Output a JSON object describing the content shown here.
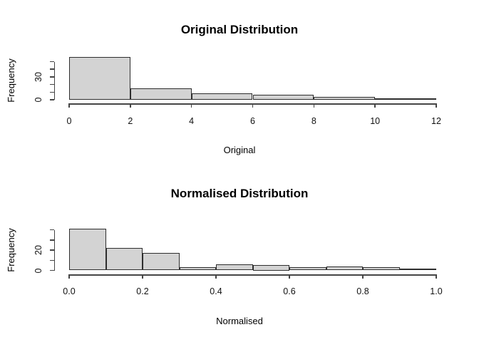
{
  "figure": {
    "background": "#ffffff",
    "text_color": "#000000"
  },
  "chart_data": [
    {
      "type": "histogram",
      "title": "Original Distribution",
      "xlabel": "Original",
      "ylabel": "Frequency",
      "bin_start": 0,
      "bin_width": 2,
      "counts": [
        56,
        15,
        8,
        7,
        4,
        2
      ],
      "xlim": [
        0,
        12
      ],
      "ylim": [
        0,
        50
      ],
      "x_ticks": [
        0,
        2,
        4,
        6,
        8,
        10,
        12
      ],
      "x_tick_labels": [
        "0",
        "2",
        "4",
        "6",
        "8",
        "10",
        "12"
      ],
      "y_ticks": [
        0,
        10,
        20,
        30,
        40,
        50
      ],
      "y_tick_labels": [
        "0",
        "",
        "",
        "30",
        "",
        ""
      ],
      "grid": false,
      "legend": false,
      "bar_fill": "#d3d3d3",
      "bar_stroke": "#2e2e2e",
      "axis_color": "#454545"
    },
    {
      "type": "histogram",
      "title": "Normalised Distribution",
      "xlabel": "Normalised",
      "ylabel": "Frequency",
      "bin_start": 0,
      "bin_width": 0.1,
      "counts": [
        41,
        22,
        17,
        3,
        6,
        5,
        3,
        4,
        3,
        2
      ],
      "xlim": [
        0,
        1
      ],
      "ylim": [
        0,
        40
      ],
      "x_ticks": [
        0,
        0.2,
        0.4,
        0.6,
        0.8,
        1.0
      ],
      "x_tick_labels": [
        "0.0",
        "0.2",
        "0.4",
        "0.6",
        "0.8",
        "1.0"
      ],
      "y_ticks": [
        0,
        10,
        20,
        30,
        40
      ],
      "y_tick_labels": [
        "0",
        "",
        "20",
        "",
        ""
      ],
      "grid": false,
      "legend": false,
      "bar_fill": "#d3d3d3",
      "bar_stroke": "#2e2e2e",
      "axis_color": "#454545"
    }
  ]
}
